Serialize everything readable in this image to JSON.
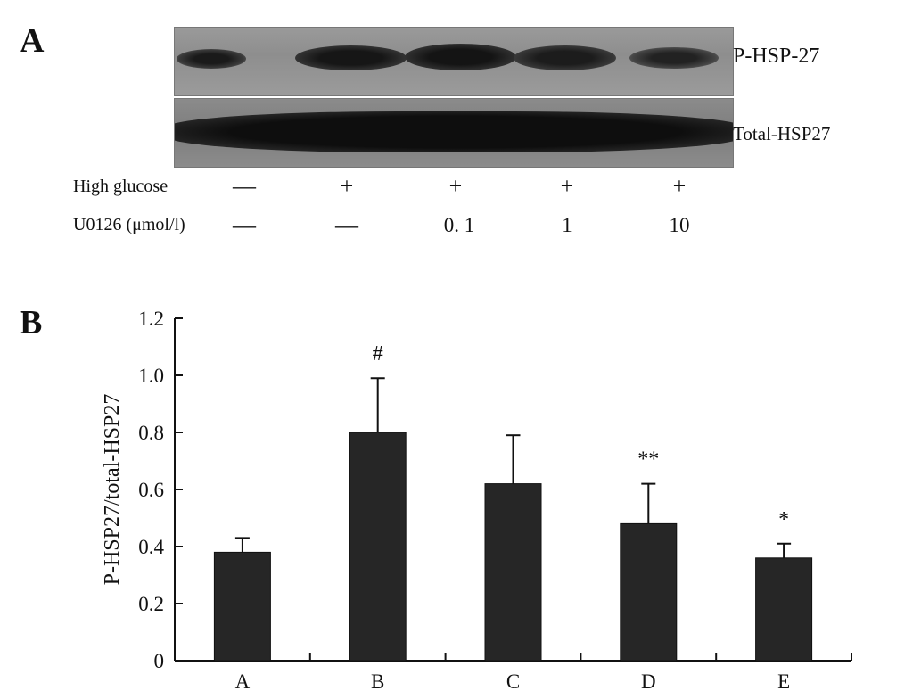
{
  "panel_a": {
    "letter": "A",
    "blot_labels": {
      "p_hsp": "P-HSP-27",
      "total": "Total-HSP27"
    },
    "conditions": {
      "glucose_label": "High glucose",
      "glucose_marks": [
        "—",
        "+",
        "+",
        "+",
        "+"
      ],
      "u0126_label": "U0126 (μmol/l)",
      "u0126_marks": [
        "—",
        "—",
        "0. 1",
        "1",
        "10"
      ]
    }
  },
  "chart_data": {
    "panel_letter": "B",
    "type": "bar",
    "categories": [
      "A",
      "B",
      "C",
      "D",
      "E"
    ],
    "values": [
      0.38,
      0.8,
      0.62,
      0.48,
      0.36
    ],
    "errors": [
      0.05,
      0.19,
      0.17,
      0.14,
      0.05
    ],
    "annotations": [
      "",
      "#",
      "",
      "**",
      "*"
    ],
    "ylabel": "P-HSP27/total-HSP27",
    "xlabel": "",
    "ylim": [
      0,
      1.2
    ],
    "yticks": [
      "0",
      "0.2",
      "0.4",
      "0.6",
      "0.8",
      "1.0",
      "1.2"
    ],
    "bar_color": "#262626"
  }
}
